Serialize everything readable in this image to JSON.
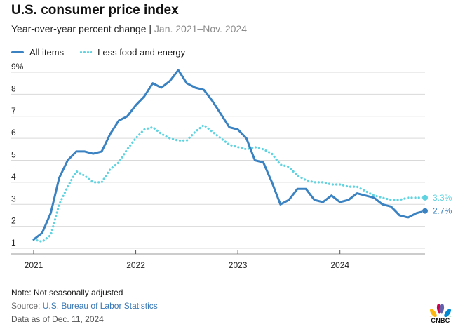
{
  "title": "U.S. consumer price index",
  "subtitle_main": "Year-over-year percent change",
  "subtitle_sep": "|",
  "subtitle_range": "Jan. 2021–Nov. 2024",
  "legend": {
    "all_items": "All items",
    "core": "Less food and energy"
  },
  "colors": {
    "all_items": "#3a82c2",
    "core": "#5fd3e0",
    "grid": "#d9d9d9",
    "axis_text": "#222222"
  },
  "footer": {
    "note": "Note: Not seasonally adjusted",
    "source_prefix": "Source: ",
    "source_link": "U.S. Bureau of Labor Statistics",
    "data_as_of": "Data as of Dec. 11, 2024"
  },
  "logo": {
    "text": "CNBC",
    "icon": "peacock-icon"
  },
  "chart_data": {
    "type": "line",
    "title": "U.S. consumer price index",
    "xlabel": "",
    "ylabel": "Year-over-year percent change",
    "ylim": [
      1,
      9
    ],
    "y_ticks": [
      1,
      2,
      3,
      4,
      5,
      6,
      7,
      8,
      9
    ],
    "y_tick_labels": [
      "1",
      "2",
      "3",
      "4",
      "5",
      "6",
      "7",
      "8",
      "9%"
    ],
    "x_ticks": [
      "2021",
      "2022",
      "2023",
      "2024"
    ],
    "x": [
      "2021-01",
      "2021-02",
      "2021-03",
      "2021-04",
      "2021-05",
      "2021-06",
      "2021-07",
      "2021-08",
      "2021-09",
      "2021-10",
      "2021-11",
      "2021-12",
      "2022-01",
      "2022-02",
      "2022-03",
      "2022-04",
      "2022-05",
      "2022-06",
      "2022-07",
      "2022-08",
      "2022-09",
      "2022-10",
      "2022-11",
      "2022-12",
      "2023-01",
      "2023-02",
      "2023-03",
      "2023-04",
      "2023-05",
      "2023-06",
      "2023-07",
      "2023-08",
      "2023-09",
      "2023-10",
      "2023-11",
      "2023-12",
      "2024-01",
      "2024-02",
      "2024-03",
      "2024-04",
      "2024-05",
      "2024-06",
      "2024-07",
      "2024-08",
      "2024-09",
      "2024-10",
      "2024-11"
    ],
    "series": [
      {
        "name": "All items",
        "values": [
          1.4,
          1.7,
          2.6,
          4.2,
          5.0,
          5.4,
          5.4,
          5.3,
          5.4,
          6.2,
          6.8,
          7.0,
          7.5,
          7.9,
          8.5,
          8.3,
          8.6,
          9.1,
          8.5,
          8.3,
          8.2,
          7.7,
          7.1,
          6.5,
          6.4,
          6.0,
          5.0,
          4.9,
          4.0,
          3.0,
          3.2,
          3.7,
          3.7,
          3.2,
          3.1,
          3.4,
          3.1,
          3.2,
          3.5,
          3.4,
          3.3,
          3.0,
          2.9,
          2.5,
          2.4,
          2.6,
          2.7
        ],
        "end_label": "2.7%"
      },
      {
        "name": "Less food and energy",
        "values": [
          1.4,
          1.3,
          1.6,
          3.0,
          3.8,
          4.5,
          4.3,
          4.0,
          4.0,
          4.6,
          4.9,
          5.5,
          6.0,
          6.4,
          6.5,
          6.2,
          6.0,
          5.9,
          5.9,
          6.3,
          6.6,
          6.3,
          6.0,
          5.7,
          5.6,
          5.5,
          5.6,
          5.5,
          5.3,
          4.8,
          4.7,
          4.3,
          4.1,
          4.0,
          4.0,
          3.9,
          3.9,
          3.8,
          3.8,
          3.6,
          3.4,
          3.3,
          3.2,
          3.2,
          3.3,
          3.3,
          3.3
        ],
        "end_label": "3.3%"
      }
    ]
  }
}
